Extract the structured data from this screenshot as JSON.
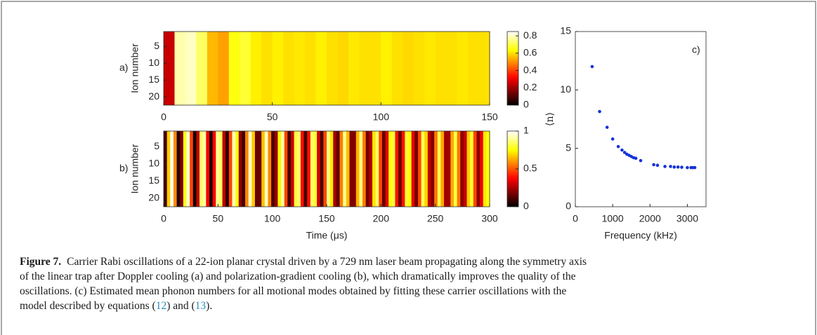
{
  "chart_data": [
    {
      "type": "heatmap",
      "panel_label": "a)",
      "ylabel": "Ion number",
      "colormap": "hot",
      "x": [
        0,
        5,
        10,
        15,
        20,
        25,
        30,
        35,
        40,
        45,
        50,
        55,
        60,
        65,
        70,
        75,
        80,
        85,
        90,
        95,
        100,
        105,
        110,
        115,
        120,
        125,
        130,
        135,
        140,
        145
      ],
      "values": [
        0.25,
        0.78,
        0.8,
        0.72,
        0.55,
        0.52,
        0.65,
        0.68,
        0.62,
        0.6,
        0.62,
        0.6,
        0.61,
        0.6,
        0.62,
        0.6,
        0.59,
        0.61,
        0.6,
        0.6,
        0.62,
        0.6,
        0.59,
        0.6,
        0.61,
        0.6,
        0.6,
        0.61,
        0.6,
        0.6
      ],
      "xlim": [
        0,
        150
      ],
      "xticks": [
        0,
        50,
        100,
        150
      ],
      "ylim": [
        0.5,
        22.5
      ],
      "yticks": [
        5,
        10,
        15,
        20
      ],
      "clim": [
        0,
        0.85
      ],
      "cticks": [
        0,
        0.2,
        0.4,
        0.6,
        0.8
      ]
    },
    {
      "type": "heatmap",
      "panel_label": "b)",
      "ylabel": "Ion number",
      "xlabel": "Time (μs)",
      "colormap": "hot",
      "x": [
        0,
        3,
        6,
        9,
        12,
        15,
        18,
        21,
        24,
        27,
        30,
        33,
        36,
        39,
        42,
        45,
        48,
        51,
        54,
        57,
        60,
        63,
        66,
        69,
        72,
        75,
        78,
        81,
        84,
        87,
        90,
        93,
        96,
        99,
        102,
        105,
        108,
        111,
        114,
        117,
        120,
        123,
        126,
        129,
        132,
        135,
        138,
        141,
        144,
        147,
        150,
        153,
        156,
        159,
        162,
        165,
        168,
        171,
        174,
        177,
        180,
        183,
        186,
        189,
        192,
        195,
        198,
        201,
        204,
        207,
        210,
        213,
        216,
        219,
        222,
        225,
        228,
        231,
        234,
        237,
        240,
        243,
        246,
        249,
        252,
        255,
        258,
        261,
        264,
        267,
        270,
        273,
        276,
        279,
        282,
        285,
        288,
        291,
        294,
        297
      ],
      "values": [
        0.1,
        0.68,
        0.99,
        0.58,
        0.05,
        0.18,
        0.77,
        0.96,
        0.47,
        0.03,
        0.28,
        0.85,
        0.91,
        0.37,
        0.03,
        0.37,
        0.9,
        0.84,
        0.28,
        0.05,
        0.47,
        0.93,
        0.76,
        0.21,
        0.09,
        0.57,
        0.95,
        0.67,
        0.15,
        0.15,
        0.66,
        0.94,
        0.57,
        0.11,
        0.22,
        0.74,
        0.91,
        0.48,
        0.09,
        0.3,
        0.81,
        0.86,
        0.39,
        0.09,
        0.39,
        0.85,
        0.8,
        0.31,
        0.1,
        0.48,
        0.88,
        0.72,
        0.24,
        0.14,
        0.56,
        0.89,
        0.65,
        0.19,
        0.19,
        0.64,
        0.88,
        0.56,
        0.16,
        0.26,
        0.71,
        0.85,
        0.48,
        0.14,
        0.33,
        0.76,
        0.81,
        0.4,
        0.14,
        0.4,
        0.8,
        0.76,
        0.34,
        0.16,
        0.48,
        0.83,
        0.69,
        0.28,
        0.19,
        0.55,
        0.83,
        0.62,
        0.24,
        0.24,
        0.62,
        0.82,
        0.55,
        0.21,
        0.29,
        0.68,
        0.8,
        0.48,
        0.2,
        0.35,
        0.72,
        0.76
      ],
      "xlim": [
        0,
        300
      ],
      "xticks": [
        0,
        50,
        100,
        150,
        200,
        250,
        300
      ],
      "ylim": [
        0.5,
        22.5
      ],
      "yticks": [
        5,
        10,
        15,
        20
      ],
      "clim": [
        0,
        1
      ],
      "cticks": [
        0,
        0.5,
        1
      ]
    },
    {
      "type": "scatter",
      "panel_label": "c)",
      "xlabel": "Frequency (kHz)",
      "ylabel": "⟨n⟩",
      "color": "#1632d6",
      "x": [
        450,
        650,
        850,
        1000,
        1150,
        1250,
        1320,
        1380,
        1440,
        1500,
        1560,
        1620,
        1750,
        2100,
        2200,
        2400,
        2550,
        2650,
        2750,
        2850,
        3000,
        3100,
        3150,
        3200
      ],
      "values": [
        12.0,
        8.15,
        6.8,
        5.8,
        5.15,
        4.85,
        4.65,
        4.5,
        4.4,
        4.3,
        4.2,
        4.15,
        3.95,
        3.6,
        3.55,
        3.45,
        3.45,
        3.4,
        3.4,
        3.38,
        3.35,
        3.35,
        3.35,
        3.35
      ],
      "xlim": [
        0,
        3500
      ],
      "xticks": [
        0,
        1000,
        2000,
        3000
      ],
      "ylim": [
        0,
        15
      ],
      "yticks": [
        0,
        5,
        10,
        15
      ]
    }
  ],
  "caption": {
    "label": "Figure 7.",
    "lines": [
      "Carrier Rabi oscillations of a 22-ion planar crystal driven by a 729 nm laser beam propagating along the symmetry axis",
      "of the linear trap after Doppler cooling (a) and polarization-gradient cooling (b), which dramatically improves the quality of the",
      "oscillations. (c) Estimated mean phonon numbers for all motional modes obtained by fitting these carrier oscillations with the",
      "model described by equations ("
    ],
    "ref1": "12",
    "between": ") and (",
    "ref2": "13",
    "end": ")."
  }
}
